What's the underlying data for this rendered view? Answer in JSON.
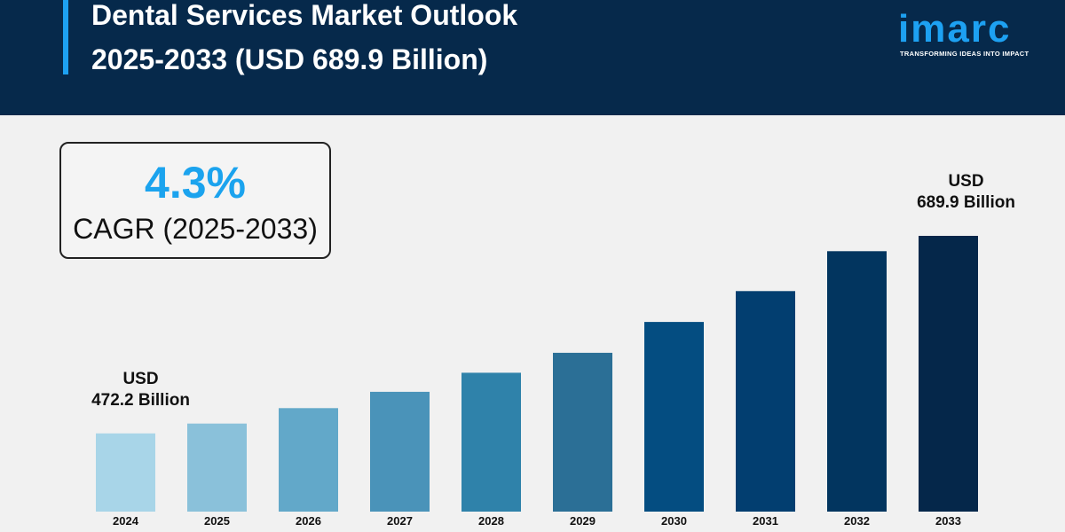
{
  "header": {
    "title_line1": "Dental Services Market Outlook",
    "title_line2": "2025-2033 (USD 689.9 Billion)",
    "logo_text": "imarc",
    "logo_tagline": "TRANSFORMING IDEAS INTO IMPACT"
  },
  "cagr": {
    "value": "4.3%",
    "label": "CAGR (2025-2033)"
  },
  "colors": {
    "header_bg": "#06294b",
    "accent": "#1da1f2",
    "bars": [
      "#a8d5e8",
      "#8ac1da",
      "#62a8c9",
      "#4a93b9",
      "#2f82aa",
      "#2b6f96",
      "#044d81",
      "#023e70",
      "#02355f",
      "#05274a"
    ]
  },
  "chart_data": {
    "type": "bar",
    "title": "",
    "xlabel": "",
    "ylabel": "",
    "categories": [
      "2024",
      "2025",
      "2026",
      "2027",
      "2028",
      "2029",
      "2030",
      "2031",
      "2032",
      "2033"
    ],
    "values": [
      472.2,
      483,
      500,
      518,
      539,
      561,
      595,
      629,
      673,
      689.9
    ],
    "ylim": [
      386,
      729
    ],
    "grid": false,
    "annotations": [
      {
        "category": "2024",
        "line1": "USD",
        "line2": "472.2 Billion"
      },
      {
        "category": "2033",
        "line1": "USD",
        "line2": "689.9 Billion"
      }
    ]
  }
}
